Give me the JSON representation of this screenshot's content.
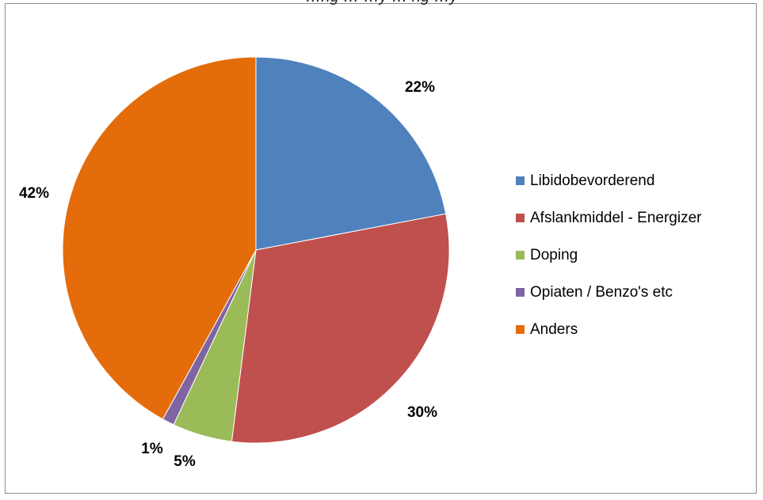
{
  "chart_data": {
    "type": "pie",
    "title": "…ng … …y … ng …y",
    "categories": [
      "Libidobevorderend",
      "Afslankmiddel - Energizer",
      "Doping",
      "Opiaten / Benzo's etc",
      "Anders"
    ],
    "values": [
      22,
      30,
      5,
      1,
      42
    ],
    "value_labels": [
      "22%",
      "30%",
      "5%",
      "1%",
      "42%"
    ],
    "colors": [
      "#4f81bd",
      "#c0504d",
      "#9bbb59",
      "#8064a2",
      "#e46c0a"
    ],
    "legend": {
      "position": "right",
      "entries": [
        "Libidobevorderend",
        "Afslankmiddel - Energizer",
        "Doping",
        "Opiaten / Benzo's etc",
        "Anders"
      ]
    }
  }
}
